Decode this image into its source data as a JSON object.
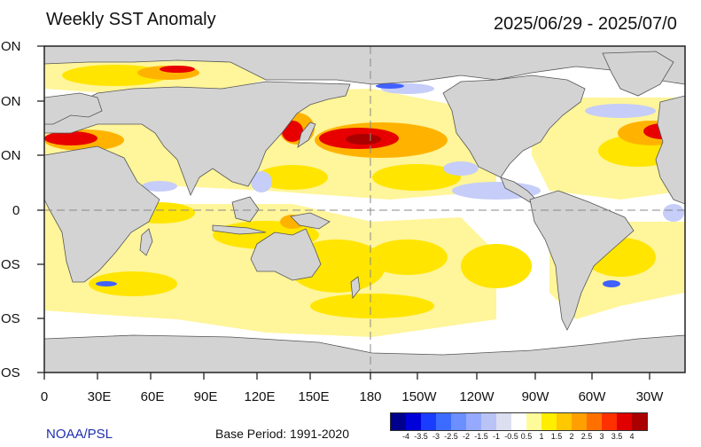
{
  "title": "Weekly SST Anomaly",
  "date_range": "2025/06/29 - 2025/07/0",
  "credit": "NOAA/PSL",
  "base_period": "Base Period: 1991-2020",
  "y_axis_labels": [
    "ON",
    "ON",
    "ON",
    "0",
    "OS",
    "OS",
    "OS"
  ],
  "x_axis_labels": [
    "0",
    "30E",
    "60E",
    "90E",
    "120E",
    "150E",
    "180",
    "150W",
    "120W",
    "90W",
    "60W",
    "30W"
  ],
  "colorbar": {
    "labels": [
      "-4",
      "-3.5",
      "-3",
      "-2.5",
      "-2",
      "-1.5",
      "-1",
      "-0.5",
      "0.5",
      "1",
      "1.5",
      "2",
      "2.5",
      "3",
      "3.5",
      "4"
    ],
    "colors": [
      "#00008c",
      "#0000d8",
      "#1a3cff",
      "#3c6cff",
      "#6b8fff",
      "#95aaff",
      "#b9c3f5",
      "#dcdff0",
      "#ffffff",
      "#fffb9a",
      "#ffee00",
      "#ffc800",
      "#ff9f00",
      "#ff7000",
      "#ff3000",
      "#e00000",
      "#aa0000"
    ]
  },
  "map_colors": {
    "land": "#d3d3d3",
    "ocean": "#ffffff",
    "warm_light": "#fff59a",
    "warm": "#ffe500",
    "warm_mid": "#ffb300",
    "warm_strong": "#ff6a00",
    "hot": "#e80000",
    "cool_light": "#c5cdf8",
    "cool": "#7d93ff"
  }
}
